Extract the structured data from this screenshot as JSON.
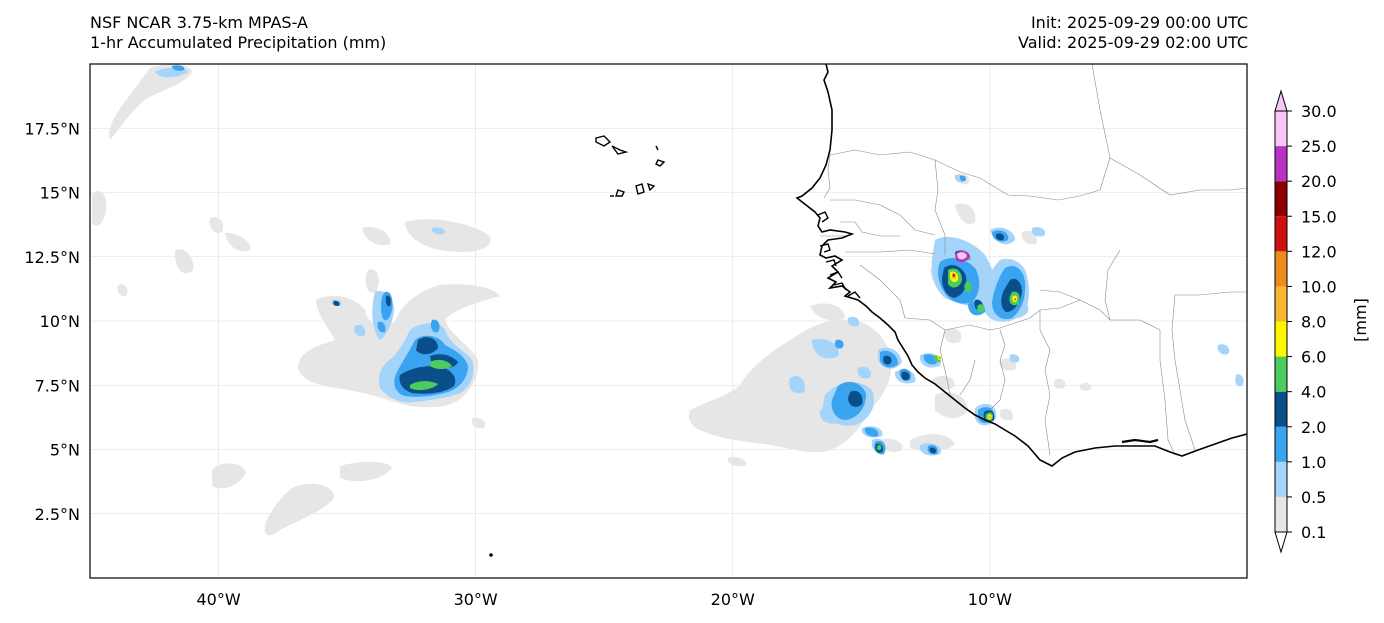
{
  "header": {
    "model": "NSF NCAR 3.75-km MPAS-A",
    "field": "1-hr Accumulated Precipitation (mm)",
    "init": "Init: 2025-09-29 00:00 UTC",
    "valid": "Valid: 2025-09-29 02:00 UTC"
  },
  "map": {
    "lon_range": [
      -45,
      0
    ],
    "lat_range": [
      0,
      20
    ],
    "lon_ticks": [
      {
        "value": -40,
        "label": "40°W"
      },
      {
        "value": -30,
        "label": "30°W"
      },
      {
        "value": -20,
        "label": "20°W"
      },
      {
        "value": -10,
        "label": "10°W"
      }
    ],
    "lat_ticks": [
      {
        "value": 2.5,
        "label": "2.5°N"
      },
      {
        "value": 5,
        "label": "5°N"
      },
      {
        "value": 7.5,
        "label": "7.5°N"
      },
      {
        "value": 10,
        "label": "10°N"
      },
      {
        "value": 12.5,
        "label": "12.5°N"
      },
      {
        "value": 15,
        "label": "15°N"
      },
      {
        "value": 17.5,
        "label": "17.5°N"
      }
    ]
  },
  "colorbar": {
    "unit_label": "[mm]",
    "levels": [
      "0.1",
      "0.5",
      "1.0",
      "2.0",
      "4.0",
      "6.0",
      "8.0",
      "10.0",
      "12.0",
      "15.0",
      "20.0",
      "25.0",
      "30.0"
    ],
    "colors": [
      "#e6e6e6",
      "#a5d4fb",
      "#3aa4f0",
      "#0b4f8a",
      "#4ccc5c",
      "#fff700",
      "#f7b733",
      "#ee8b1f",
      "#cc1111",
      "#8c0000",
      "#b833c4",
      "#f8c8f4"
    ],
    "extend_under_color": "#ffffff",
    "extend_over_color": "#f8c8f4"
  }
}
